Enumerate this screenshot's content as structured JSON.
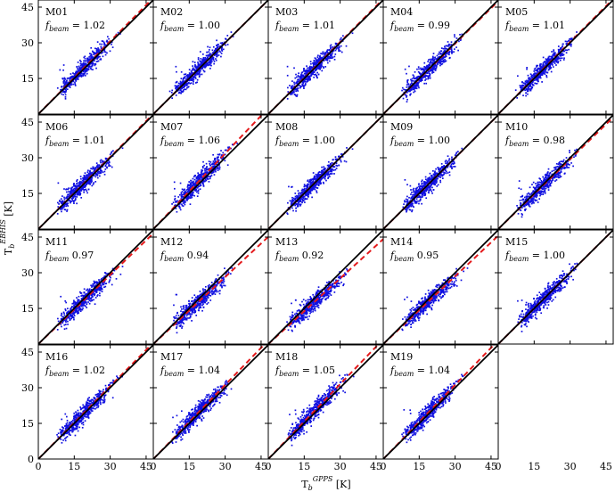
{
  "chart_data": {
    "type": "scatter",
    "layout": "small-multiples grid, 4 rows x 5 columns (last cell empty)",
    "xlabel": "T",
    "xlabel_sub": "b",
    "xlabel_sup": "GPPS",
    "xlabel_unit": "[K]",
    "ylabel": "T",
    "ylabel_sub": "b",
    "ylabel_sup": "EBHIS",
    "ylabel_unit": "[K]",
    "xlim": [
      0,
      48
    ],
    "ylim": [
      0,
      48
    ],
    "x_ticks": [
      "0",
      "15",
      "30",
      "45"
    ],
    "y_ticks": [
      "15",
      "30",
      "45"
    ],
    "y_ticks_bottom_panel": [
      "0",
      "15",
      "30",
      "45"
    ],
    "lines": [
      {
        "style": "solid",
        "color": "#000000",
        "slope": 1
      },
      {
        "style": "dashed",
        "color": "#e41a1c",
        "slope": "f_beam"
      }
    ],
    "point_color": "#1010e0",
    "grid": false,
    "legend": "none",
    "beam_symbol": "f",
    "beam_subscript": "beam",
    "panels": [
      {
        "id": "M01",
        "op": "=",
        "fbeam": 1.02
      },
      {
        "id": "M02",
        "op": "=",
        "fbeam": 1.0
      },
      {
        "id": "M03",
        "op": "=",
        "fbeam": 1.01
      },
      {
        "id": "M04",
        "op": "=",
        "fbeam": 0.99
      },
      {
        "id": "M05",
        "op": "=",
        "fbeam": 1.01
      },
      {
        "id": "M06",
        "op": "=",
        "fbeam": 1.01
      },
      {
        "id": "M07",
        "op": "=",
        "fbeam": 1.06
      },
      {
        "id": "M08",
        "op": "=",
        "fbeam": 1.0
      },
      {
        "id": "M09",
        "op": "=",
        "fbeam": 1.0
      },
      {
        "id": "M10",
        "op": "=",
        "fbeam": 0.98
      },
      {
        "id": "M11",
        "op": "",
        "fbeam": 0.97
      },
      {
        "id": "M12",
        "op": "",
        "fbeam": 0.94
      },
      {
        "id": "M13",
        "op": "",
        "fbeam": 0.92
      },
      {
        "id": "M14",
        "op": "",
        "fbeam": 0.95
      },
      {
        "id": "M15",
        "op": "=",
        "fbeam": 1.0
      },
      {
        "id": "M16",
        "op": "=",
        "fbeam": 1.02
      },
      {
        "id": "M17",
        "op": "=",
        "fbeam": 1.04
      },
      {
        "id": "M18",
        "op": "=",
        "fbeam": 1.05
      },
      {
        "id": "M19",
        "op": "=",
        "fbeam": 1.04
      }
    ]
  }
}
